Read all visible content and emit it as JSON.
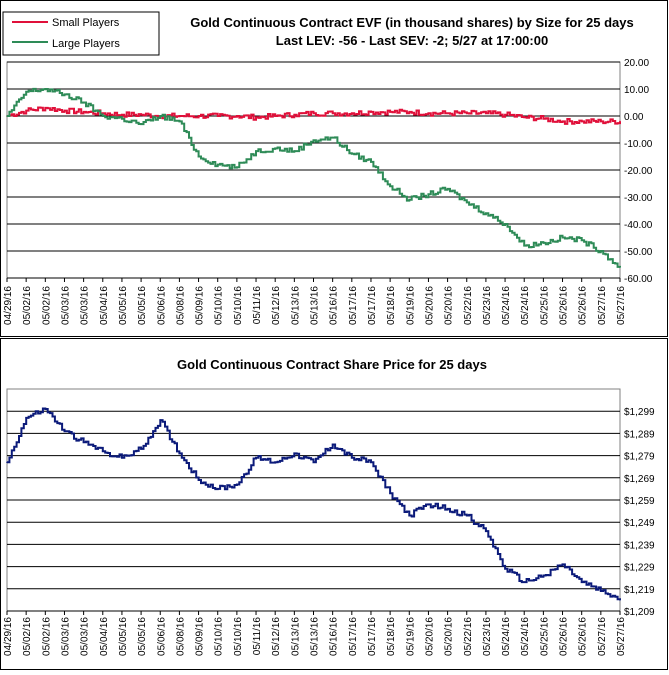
{
  "chart_data": [
    {
      "type": "line",
      "title": "Gold Continuous Contract EVF (in thousand shares) by Size for 25 days",
      "subtitle": "Last LEV: -56 - Last SEV: -2; 5/27 at 17:00:00",
      "legend_position": "top-left",
      "ylim": [
        -60,
        20
      ],
      "yticks": [
        "20.00",
        "10.00",
        "0.00",
        "-10.00",
        "-20.00",
        "-30.00",
        "-40.00",
        "-50.00",
        "-60.00"
      ],
      "ytick_values": [
        20,
        10,
        0,
        -10,
        -20,
        -30,
        -40,
        -50,
        -60
      ],
      "grid": true,
      "categories": [
        "04/29/16",
        "05/02/16",
        "05/02/16",
        "05/03/16",
        "05/03/16",
        "05/04/16",
        "05/05/16",
        "05/05/16",
        "05/06/16",
        "05/08/16",
        "05/09/16",
        "05/10/16",
        "05/10/16",
        "05/11/16",
        "05/12/16",
        "05/13/16",
        "05/13/16",
        "05/16/16",
        "05/17/16",
        "05/17/16",
        "05/18/16",
        "05/19/16",
        "05/20/16",
        "05/20/16",
        "05/22/16",
        "05/23/16",
        "05/24/16",
        "05/24/16",
        "05/25/16",
        "05/26/16",
        "05/26/16",
        "05/27/16",
        "05/27/16"
      ],
      "series": [
        {
          "name": "Small Players",
          "color": "#e0103a",
          "values": [
            0,
            2,
            3,
            2,
            1.5,
            1,
            0.5,
            0.5,
            0,
            0,
            0,
            0,
            0,
            -0.5,
            0,
            0.5,
            1,
            1,
            1,
            1.5,
            1.5,
            1.5,
            1,
            1,
            1,
            1,
            0.5,
            -0.5,
            -1,
            -2,
            -2,
            -2,
            -2
          ]
        },
        {
          "name": "Large Players",
          "color": "#2e8b57",
          "values": [
            0,
            9,
            10,
            8,
            5,
            0,
            -1,
            -3,
            0,
            -2,
            -15,
            -18,
            -19,
            -13,
            -12,
            -13,
            -9,
            -8,
            -14,
            -17,
            -26,
            -31,
            -29,
            -27,
            -32,
            -36,
            -40,
            -48,
            -47,
            -45,
            -46,
            -50,
            -56
          ]
        }
      ]
    },
    {
      "type": "line",
      "title": "Gold Continuous Contract Share Price for 25 days",
      "ylim": [
        1209,
        1309
      ],
      "yticks": [
        "$1,299",
        "$1,289",
        "$1,279",
        "$1,269",
        "$1,259",
        "$1,249",
        "$1,239",
        "$1,229",
        "$1,219",
        "$1,209"
      ],
      "ytick_values": [
        1299,
        1289,
        1279,
        1269,
        1259,
        1249,
        1239,
        1229,
        1219,
        1209
      ],
      "grid": true,
      "categories": [
        "04/29/16",
        "05/02/16",
        "05/02/16",
        "05/03/16",
        "05/03/16",
        "05/04/16",
        "05/05/16",
        "05/05/16",
        "05/06/16",
        "05/08/16",
        "05/09/16",
        "05/10/16",
        "05/10/16",
        "05/11/16",
        "05/12/16",
        "05/13/16",
        "05/13/16",
        "05/16/16",
        "05/17/16",
        "05/17/16",
        "05/18/16",
        "05/19/16",
        "05/20/16",
        "05/20/16",
        "05/22/16",
        "05/23/16",
        "05/24/16",
        "05/24/16",
        "05/25/16",
        "05/26/16",
        "05/26/16",
        "05/27/16",
        "05/27/16"
      ],
      "series": [
        {
          "color": "#0b1a7a",
          "values": [
            1276,
            1296,
            1300,
            1290,
            1285,
            1281,
            1278,
            1282,
            1295,
            1280,
            1268,
            1264,
            1266,
            1278,
            1276,
            1280,
            1276,
            1284,
            1278,
            1276,
            1262,
            1252,
            1257,
            1255,
            1252,
            1245,
            1228,
            1222,
            1225,
            1230,
            1222,
            1218,
            1214
          ]
        }
      ]
    }
  ]
}
